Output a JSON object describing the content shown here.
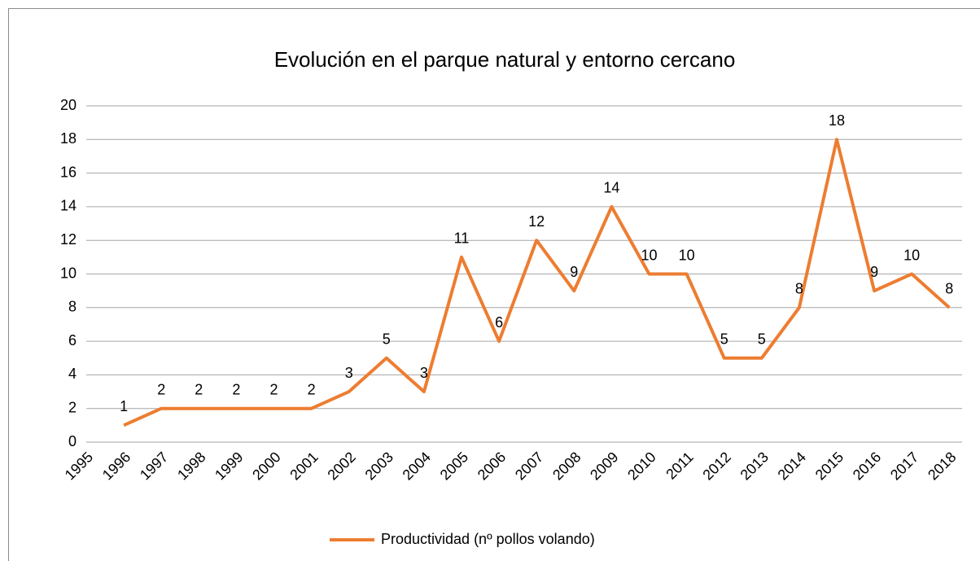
{
  "chart_data": {
    "type": "line",
    "title": "Evolución en el parque natural y entorno cercano",
    "categories": [
      "1995",
      "1996",
      "1997",
      "1998",
      "1999",
      "2000",
      "2001",
      "2002",
      "2003",
      "2004",
      "2005",
      "2006",
      "2007",
      "2008",
      "2009",
      "2010",
      "2011",
      "2012",
      "2013",
      "2014",
      "2015",
      "2016",
      "2017",
      "2018"
    ],
    "series": [
      {
        "name": "Productividad (nº pollos volando)",
        "color": "#ed7d31",
        "values": [
          null,
          1,
          2,
          2,
          2,
          2,
          2,
          3,
          5,
          3,
          11,
          6,
          12,
          9,
          14,
          10,
          10,
          5,
          5,
          8,
          18,
          9,
          10,
          8
        ]
      }
    ],
    "ylim": [
      0,
      20
    ],
    "yticks": [
      0,
      2,
      4,
      6,
      8,
      10,
      12,
      14,
      16,
      18,
      20
    ],
    "grid": true,
    "legend": "bottom"
  }
}
